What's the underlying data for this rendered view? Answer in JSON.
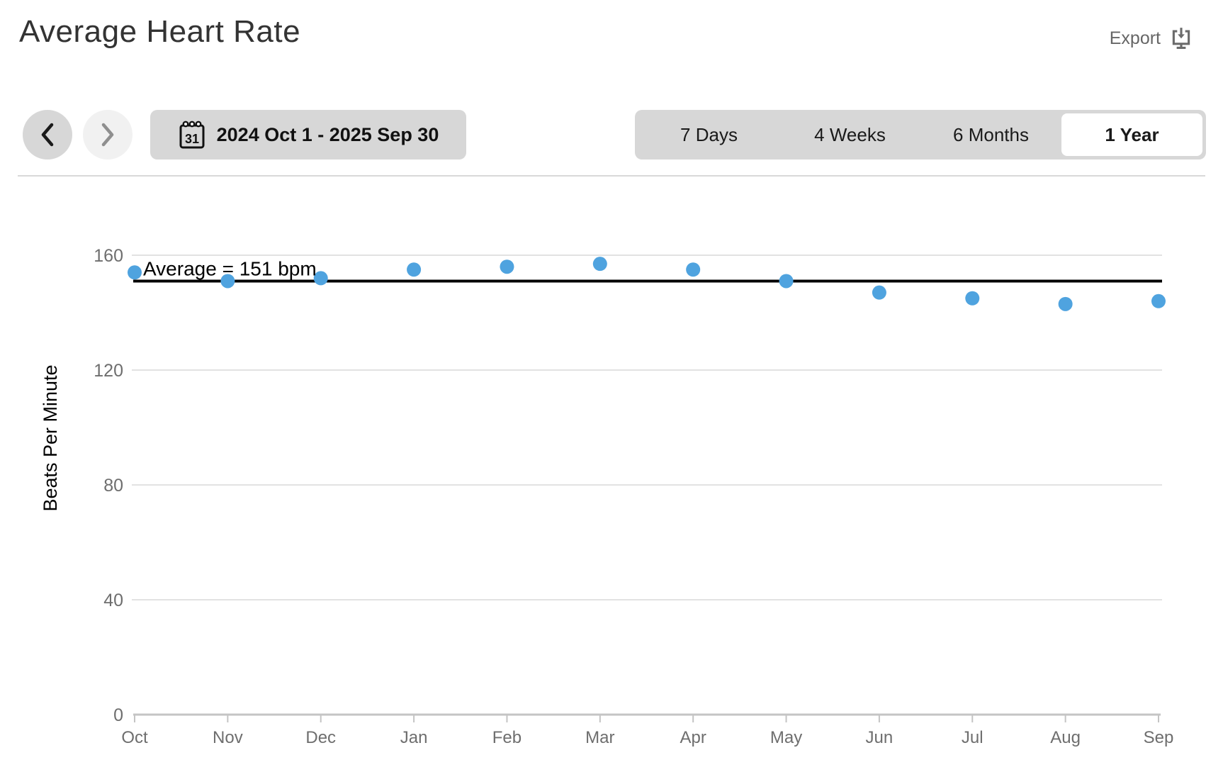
{
  "header": {
    "title": "Average Heart Rate",
    "export_label": "Export"
  },
  "controls": {
    "date_range": "2024 Oct 1 - 2025 Sep 30",
    "calendar_day": "31",
    "tabs": [
      {
        "label": "7 Days",
        "selected": false
      },
      {
        "label": "4 Weeks",
        "selected": false
      },
      {
        "label": "6 Months",
        "selected": false
      },
      {
        "label": "1 Year",
        "selected": true
      }
    ]
  },
  "chart_data": {
    "type": "scatter",
    "title": "Average Heart Rate",
    "xlabel": "",
    "ylabel": "Beats Per Minute",
    "categories": [
      "Oct",
      "Nov",
      "Dec",
      "Jan",
      "Feb",
      "Mar",
      "Apr",
      "May",
      "Jun",
      "Jul",
      "Aug",
      "Sep"
    ],
    "values": [
      154,
      151,
      152,
      155,
      156,
      157,
      155,
      151,
      147,
      145,
      143,
      144
    ],
    "average": 151,
    "average_label": "Average = 151 bpm",
    "yticks": [
      0,
      40,
      80,
      120,
      160
    ],
    "ylim": [
      0,
      168
    ],
    "grid": true,
    "legend": "none",
    "point_color": "#4FA3DF",
    "average_line_color": "#000000",
    "grid_color": "#e2e2e2",
    "axis_color": "#c4c4c4",
    "tick_label_color": "#6e6e6e"
  }
}
